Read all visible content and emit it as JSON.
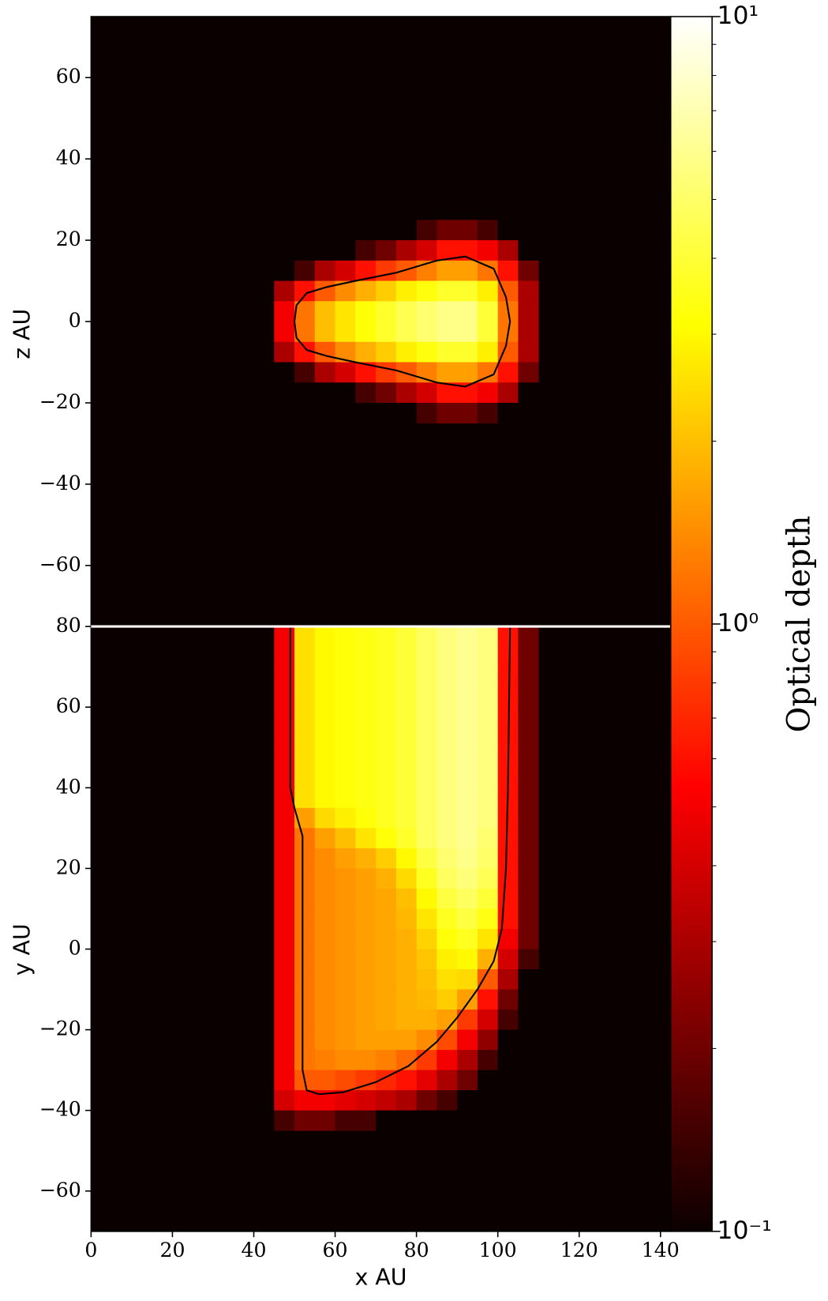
{
  "chart_data": {
    "type": "heatmap",
    "colormap": "hot",
    "xlabel": "x AU",
    "xlim": [
      0,
      142.5
    ],
    "xticks": [
      0,
      20,
      40,
      60,
      80,
      100,
      120,
      140
    ],
    "colorbar": {
      "label": "Optical depth",
      "log": true,
      "lim": [
        0.1,
        10
      ],
      "ticks": [
        {
          "value": 0.1,
          "label": "10⁻¹"
        },
        {
          "value": 1,
          "label": "10⁰"
        },
        {
          "value": 10,
          "label": "10¹"
        }
      ],
      "minor_ticks": [
        0.2,
        0.3,
        0.4,
        0.5,
        0.6,
        0.7,
        0.8,
        0.9,
        2,
        3,
        4,
        5,
        6,
        7,
        8,
        9
      ]
    },
    "panels": [
      {
        "ylabel": "z AU",
        "ylim": [
          -75,
          75
        ],
        "yticks": [
          {
            "value": -60,
            "label": "−60"
          },
          {
            "value": -40,
            "label": "−40"
          },
          {
            "value": -20,
            "label": "−20"
          },
          0,
          20,
          40,
          60
        ],
        "x_edges": [
          45,
          50,
          55,
          60,
          65,
          70,
          75,
          80,
          85,
          90,
          95,
          100,
          105,
          110
        ],
        "y_edges": [
          25,
          20,
          15,
          10,
          5,
          0,
          -5,
          -10,
          -15,
          -20,
          -25
        ],
        "z": [
          [
            0.1,
            0.1,
            0.1,
            0.1,
            0.1,
            0.1,
            0.1,
            0.15,
            0.2,
            0.2,
            0.15,
            0.1,
            0.1
          ],
          [
            0.1,
            0.1,
            0.1,
            0.1,
            0.15,
            0.2,
            0.3,
            0.4,
            0.6,
            0.6,
            0.5,
            0.3,
            0.1
          ],
          [
            0.1,
            0.15,
            0.3,
            0.4,
            0.6,
            0.8,
            1.0,
            1.3,
            1.6,
            1.6,
            1.2,
            0.6,
            0.2
          ],
          [
            0.3,
            0.6,
            1.0,
            1.4,
            1.8,
            2.2,
            2.8,
            3.3,
            3.8,
            3.8,
            2.8,
            1.0,
            0.3
          ],
          [
            0.5,
            1.2,
            2.0,
            2.6,
            3.2,
            3.8,
            4.5,
            5.2,
            5.8,
            5.8,
            4.0,
            1.2,
            0.3
          ],
          [
            0.5,
            1.2,
            2.0,
            2.6,
            3.2,
            3.8,
            4.5,
            5.2,
            5.8,
            5.8,
            4.0,
            1.2,
            0.3
          ],
          [
            0.3,
            0.6,
            1.0,
            1.4,
            1.8,
            2.2,
            2.8,
            3.3,
            3.8,
            3.8,
            2.8,
            1.0,
            0.3
          ],
          [
            0.1,
            0.15,
            0.3,
            0.4,
            0.6,
            0.8,
            1.0,
            1.3,
            1.6,
            1.6,
            1.2,
            0.6,
            0.2
          ],
          [
            0.1,
            0.1,
            0.1,
            0.1,
            0.15,
            0.2,
            0.3,
            0.4,
            0.6,
            0.6,
            0.5,
            0.3,
            0.1
          ],
          [
            0.1,
            0.1,
            0.1,
            0.1,
            0.1,
            0.1,
            0.1,
            0.15,
            0.2,
            0.2,
            0.15,
            0.1,
            0.1
          ]
        ],
        "contour": {
          "x": [
            50,
            50.5,
            53,
            58,
            65,
            75,
            85,
            92,
            99,
            102,
            103,
            102,
            99,
            92,
            85,
            75,
            65,
            58,
            53,
            50.5,
            50
          ],
          "y": [
            0,
            4,
            7,
            8.5,
            10,
            12,
            15,
            16,
            13,
            6,
            0,
            -6,
            -13,
            -16,
            -15,
            -12,
            -10,
            -8.5,
            -7,
            -4,
            0
          ]
        }
      },
      {
        "ylabel": "y AU",
        "ylim": [
          -70,
          80
        ],
        "yticks": [
          {
            "value": -60,
            "label": "−60"
          },
          {
            "value": -40,
            "label": "−40"
          },
          {
            "value": -20,
            "label": "−20"
          },
          0,
          20,
          40,
          60,
          80
        ],
        "x_edges": [
          45,
          50,
          55,
          60,
          65,
          70,
          75,
          80,
          85,
          90,
          95,
          100,
          105,
          110
        ],
        "y_edges": [
          80,
          75,
          70,
          65,
          60,
          55,
          50,
          45,
          40,
          35,
          30,
          25,
          20,
          15,
          10,
          5,
          0,
          -5,
          -10,
          -15,
          -20,
          -25,
          -30,
          -35,
          -40,
          -45
        ],
        "z": [
          [
            0.5,
            2.5,
            3.0,
            3.2,
            3.4,
            3.6,
            4.0,
            4.8,
            5.5,
            6.0,
            5.5,
            0.6,
            0.2
          ],
          [
            0.5,
            2.5,
            3.0,
            3.2,
            3.4,
            3.6,
            4.0,
            4.8,
            5.5,
            6.0,
            5.5,
            0.6,
            0.2
          ],
          [
            0.5,
            2.5,
            3.0,
            3.2,
            3.4,
            3.6,
            4.0,
            4.8,
            5.5,
            6.0,
            5.5,
            0.6,
            0.2
          ],
          [
            0.5,
            2.5,
            3.0,
            3.2,
            3.4,
            3.6,
            4.0,
            4.8,
            5.5,
            6.0,
            5.5,
            0.6,
            0.2
          ],
          [
            0.5,
            2.5,
            3.0,
            3.2,
            3.4,
            3.6,
            4.0,
            4.8,
            5.5,
            6.0,
            5.5,
            0.6,
            0.2
          ],
          [
            0.5,
            2.5,
            3.0,
            3.2,
            3.4,
            3.6,
            4.0,
            4.8,
            5.5,
            6.0,
            5.5,
            0.6,
            0.2
          ],
          [
            0.5,
            2.5,
            3.0,
            3.2,
            3.4,
            3.6,
            4.0,
            4.8,
            5.5,
            6.0,
            5.5,
            0.6,
            0.2
          ],
          [
            0.5,
            2.5,
            3.0,
            3.2,
            3.4,
            3.6,
            4.0,
            4.8,
            5.5,
            6.0,
            5.5,
            0.6,
            0.2
          ],
          [
            0.5,
            2.5,
            3.0,
            3.2,
            3.4,
            3.6,
            4.0,
            4.8,
            5.5,
            6.0,
            5.5,
            0.6,
            0.2
          ],
          [
            0.5,
            1.6,
            2.4,
            2.8,
            3.2,
            3.6,
            4.0,
            4.8,
            5.5,
            6.0,
            5.5,
            0.6,
            0.2
          ],
          [
            0.5,
            1.2,
            1.6,
            2.0,
            2.6,
            3.2,
            3.8,
            4.8,
            5.5,
            6.0,
            5.2,
            0.6,
            0.2
          ],
          [
            0.5,
            1.2,
            1.4,
            1.6,
            1.8,
            2.2,
            3.0,
            4.2,
            5.2,
            5.8,
            5.0,
            0.6,
            0.2
          ],
          [
            0.5,
            1.2,
            1.4,
            1.5,
            1.6,
            1.8,
            2.4,
            3.6,
            4.8,
            5.4,
            4.6,
            0.6,
            0.2
          ],
          [
            0.5,
            1.2,
            1.4,
            1.5,
            1.6,
            1.7,
            2.0,
            3.0,
            4.2,
            4.8,
            4.0,
            0.6,
            0.2
          ],
          [
            0.5,
            1.2,
            1.4,
            1.5,
            1.6,
            1.7,
            1.9,
            2.6,
            3.6,
            4.2,
            3.4,
            0.6,
            0.2
          ],
          [
            0.5,
            1.2,
            1.4,
            1.5,
            1.6,
            1.7,
            1.8,
            2.3,
            3.2,
            3.6,
            2.6,
            0.5,
            0.2
          ],
          [
            0.5,
            1.2,
            1.4,
            1.5,
            1.6,
            1.7,
            1.8,
            2.1,
            2.8,
            3.0,
            1.8,
            0.4,
            0.15
          ],
          [
            0.5,
            1.2,
            1.4,
            1.5,
            1.6,
            1.7,
            1.8,
            2.0,
            2.5,
            2.4,
            1.0,
            0.3,
            0.1
          ],
          [
            0.5,
            1.2,
            1.4,
            1.5,
            1.6,
            1.7,
            1.8,
            1.9,
            2.2,
            1.6,
            0.6,
            0.2,
            0.1
          ],
          [
            0.5,
            1.2,
            1.4,
            1.5,
            1.6,
            1.7,
            1.8,
            1.8,
            1.6,
            0.8,
            0.4,
            0.15,
            0.1
          ],
          [
            0.5,
            1.2,
            1.4,
            1.5,
            1.6,
            1.6,
            1.6,
            1.4,
            0.9,
            0.5,
            0.25,
            0.1,
            0.1
          ],
          [
            0.5,
            1.2,
            1.3,
            1.4,
            1.4,
            1.3,
            1.1,
            0.8,
            0.5,
            0.3,
            0.15,
            0.1,
            0.1
          ],
          [
            0.5,
            1.0,
            1.0,
            0.9,
            0.8,
            0.7,
            0.6,
            0.45,
            0.3,
            0.2,
            0.1,
            0.1,
            0.1
          ],
          [
            0.4,
            0.5,
            0.5,
            0.45,
            0.4,
            0.35,
            0.3,
            0.2,
            0.15,
            0.1,
            0.1,
            0.1,
            0.1
          ],
          [
            0.15,
            0.2,
            0.2,
            0.15,
            0.15,
            0.1,
            0.1,
            0.1,
            0.1,
            0.1,
            0.1,
            0.1,
            0.1
          ]
        ],
        "contour": {
          "x": [
            49,
            49,
            50,
            52,
            52,
            53,
            56,
            62,
            70,
            78,
            85,
            90,
            95,
            99,
            101,
            102,
            102.5,
            103
          ],
          "y": [
            80,
            40,
            35,
            28,
            -30,
            -35,
            -36,
            -35.5,
            -33,
            -29,
            -23,
            -17,
            -10,
            -3,
            5,
            20,
            40,
            80
          ]
        }
      }
    ]
  }
}
